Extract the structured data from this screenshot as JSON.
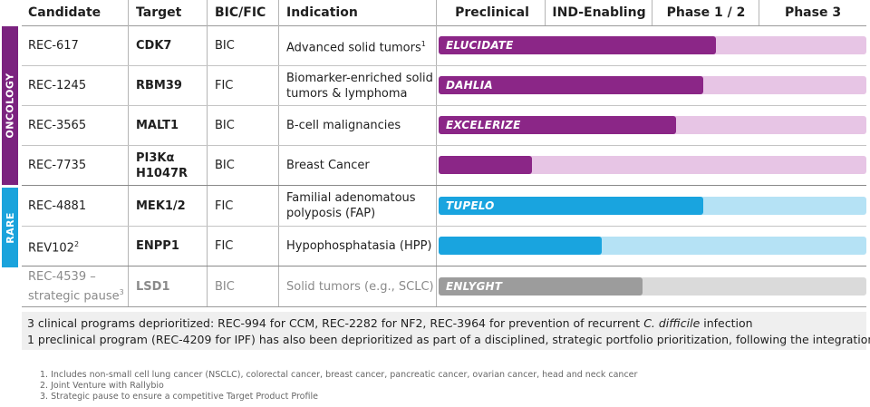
{
  "headers": {
    "candidate": "Candidate",
    "target": "Target",
    "bic_fic": "BIC/FIC",
    "indication": "Indication",
    "phases": [
      "Preclinical",
      "IND-Enabling",
      "Phase 1 / 2",
      "Phase 3"
    ]
  },
  "groups": {
    "oncology": {
      "label": "ONCOLOGY",
      "color": "#7b237f"
    },
    "rare": {
      "label": "RARE",
      "color": "#1aa3dc"
    }
  },
  "rows": [
    {
      "candidate": "REC-617",
      "candidate_sup": "",
      "target": "CDK7",
      "bic_fic": "BIC",
      "indication": "Advanced solid tumors",
      "indication_sup": "1",
      "program": "ELUCIDATE",
      "progress": 0.648,
      "fill_color": "#8b2687",
      "track_color": "#e7c5e5"
    },
    {
      "candidate": "REC-1245",
      "candidate_sup": "",
      "target": "RBM39",
      "bic_fic": "FIC",
      "indication": "Biomarker-enriched solid tumors & lymphoma",
      "indication_sup": "",
      "program": "DAHLIA",
      "progress": 0.618,
      "fill_color": "#8b2687",
      "track_color": "#e7c5e5"
    },
    {
      "candidate": "REC-3565",
      "candidate_sup": "",
      "target": "MALT1",
      "bic_fic": "BIC",
      "indication": "B-cell malignancies",
      "indication_sup": "",
      "program": "EXCELERIZE",
      "progress": 0.555,
      "fill_color": "#8b2687",
      "track_color": "#e7c5e5"
    },
    {
      "candidate": "REC-7735",
      "candidate_sup": "",
      "target": "PI3Kα H1047R",
      "bic_fic": "BIC",
      "indication": "Breast Cancer",
      "indication_sup": "",
      "program": "",
      "progress": 0.218,
      "fill_color": "#8b2687",
      "track_color": "#e7c5e5"
    },
    {
      "candidate": "REC-4881",
      "candidate_sup": "",
      "target": "MEK1/2",
      "bic_fic": "FIC",
      "indication": "Familial adenomatous polyposis (FAP)",
      "indication_sup": "",
      "program": "TUPELO",
      "progress": 0.618,
      "fill_color": "#19a4df",
      "track_color": "#b5e2f5"
    },
    {
      "candidate": "REV102",
      "candidate_sup": "2",
      "target": "ENPP1",
      "bic_fic": "FIC",
      "indication": "Hypophosphatasia (HPP)",
      "indication_sup": "",
      "program": "",
      "progress": 0.382,
      "fill_color": "#19a4df",
      "track_color": "#b5e2f5"
    },
    {
      "candidate": "REC-4539 – strategic pause",
      "candidate_sup": "3",
      "target": "LSD1",
      "bic_fic": "BIC",
      "indication": "Solid tumors (e.g., SCLC)",
      "indication_sup": "",
      "program": "ENLYGHT",
      "progress": 0.477,
      "fill_color": "#9c9c9c",
      "track_color": "#dadada"
    }
  ],
  "note": {
    "line1_before": "3 clinical programs deprioritized: REC-994 for CCM, REC-2282 for NF2, REC-3964 for prevention of recurrent ",
    "line1_italic": "C. difficile",
    "line1_after": " infection",
    "line2": "1 preclinical program (REC-4209 for IPF) has also been deprioritized as part of a disciplined, strategic portfolio prioritization, following the integration"
  },
  "footnotes": [
    "1.  Includes non-small cell lung cancer (NSCLC), colorectal cancer, breast cancer, pancreatic cancer, ovarian cancer, head and neck cancer",
    "2.  Joint Venture with Rallybio",
    "3.  Strategic pause to ensure a competitive Target Product Profile"
  ]
}
